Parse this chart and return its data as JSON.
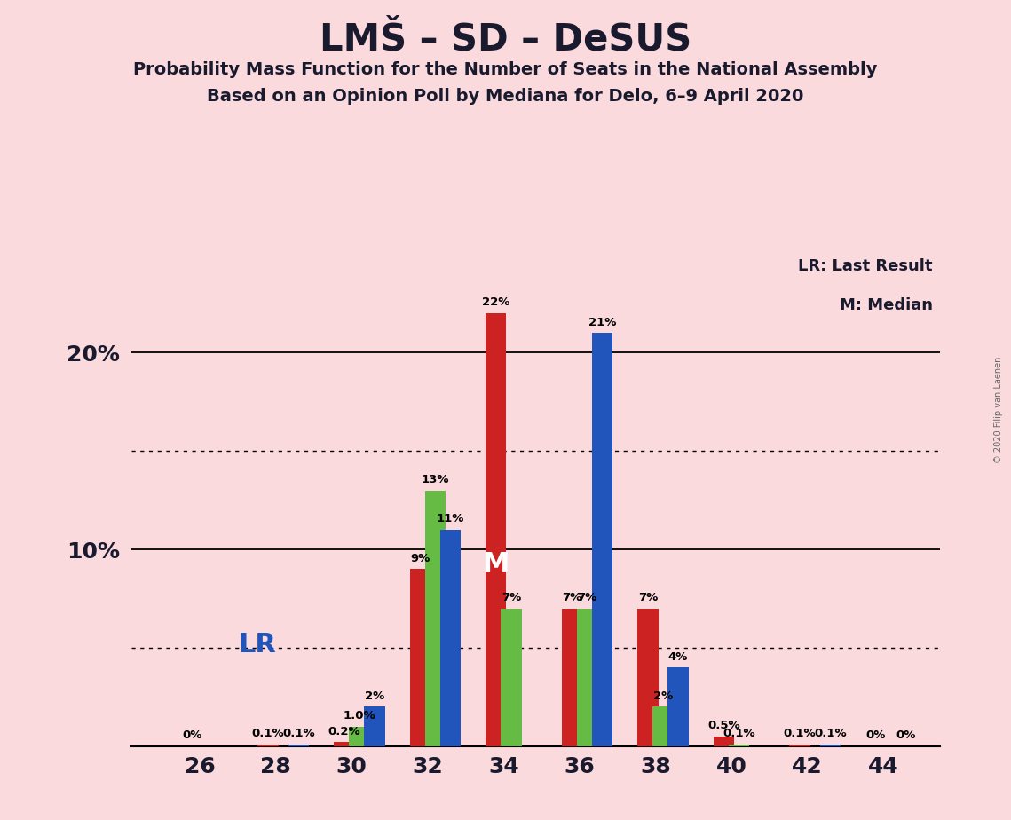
{
  "title": "LMŠ – SD – DeSUS",
  "subtitle1": "Probability Mass Function for the Number of Seats in the National Assembly",
  "subtitle2": "Based on an Opinion Poll by Mediana for Delo, 6–9 April 2020",
  "copyright": "© 2020 Filip van Laenen",
  "background_color": "#FADADD",
  "bar_width": 0.6,
  "seats": [
    26,
    28,
    30,
    32,
    34,
    36,
    38,
    40,
    42,
    44
  ],
  "red_values": [
    0.0,
    0.1,
    0.2,
    9.0,
    22.0,
    7.0,
    7.0,
    0.5,
    0.1,
    0.0
  ],
  "green_values": [
    0.0,
    0.0,
    1.0,
    13.0,
    7.0,
    7.0,
    2.0,
    0.1,
    0.0,
    0.0
  ],
  "blue_values": [
    0.0,
    0.1,
    2.0,
    11.0,
    0.0,
    21.0,
    4.0,
    0.0,
    0.1,
    0.0
  ],
  "red_labels": [
    "0%",
    "0.1%",
    "0.2%",
    "9%",
    "22%",
    "7%",
    "7%",
    "0.5%",
    "0.1%",
    "0%"
  ],
  "green_labels": [
    "",
    "",
    "1.0%",
    "13%",
    "7%",
    "7%",
    "2%",
    "0.1%",
    "",
    ""
  ],
  "blue_labels": [
    "",
    "0.1%",
    "2%",
    "11%",
    "",
    "21%",
    "4%",
    "",
    "0.1%",
    "0%"
  ],
  "red_color": "#CC2222",
  "green_color": "#66BB44",
  "blue_color": "#2255BB",
  "ylim": [
    0,
    25
  ],
  "solid_lines": [
    10.0,
    20.0
  ],
  "dotted_lines": [
    5.0,
    15.0
  ],
  "median_seat": 34,
  "lr_seat": 28,
  "legend_lr": "LR: Last Result",
  "legend_m": "M: Median",
  "label_fontsize": 9.5,
  "tick_fontsize": 18,
  "title_fontsize": 30,
  "subtitle_fontsize": 14
}
